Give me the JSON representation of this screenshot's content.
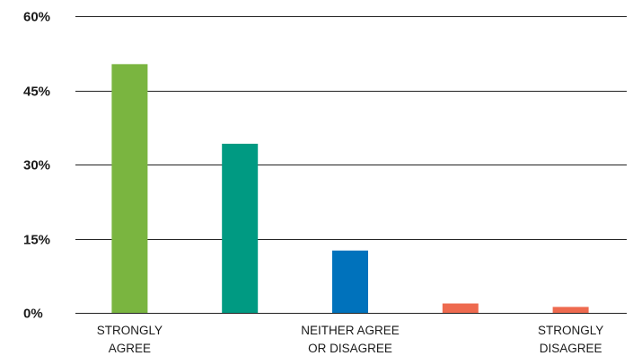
{
  "chart_data": {
    "type": "bar",
    "title": "",
    "xlabel": "",
    "ylabel": "",
    "ylim": [
      0,
      60
    ],
    "y_ticks": [
      "0%",
      "15%",
      "30%",
      "45%",
      "60%"
    ],
    "y_tick_values": [
      0,
      15,
      30,
      45,
      60
    ],
    "grid": true,
    "legend": "none",
    "categories": [
      [
        "STRONGLY",
        "AGREE"
      ],
      [
        "",
        ""
      ],
      [
        "NEITHER AGREE",
        "OR DISAGREE"
      ],
      [
        "",
        ""
      ],
      [
        "STRONGLY",
        "DISAGREE"
      ]
    ],
    "values": [
      50.3,
      34.2,
      12.6,
      1.9,
      1.2
    ],
    "colors": [
      "#7ab540",
      "#009a82",
      "#0072bc",
      "#ee6a4f",
      "#ee6a4f"
    ]
  }
}
